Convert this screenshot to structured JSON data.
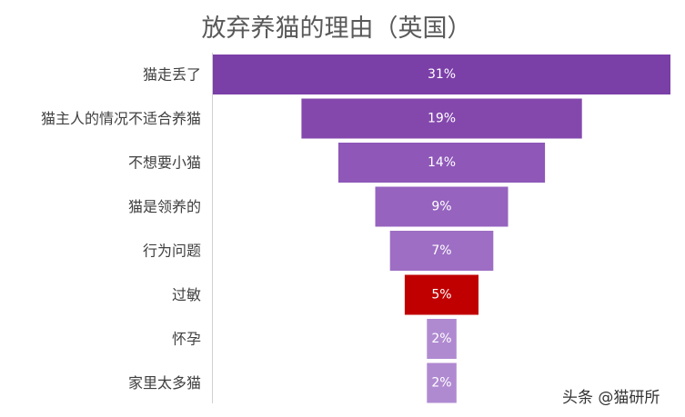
{
  "chart_data": {
    "type": "bar",
    "orientation": "horizontal",
    "layout": "funnel",
    "title": "放弃养猫的理由（英国）",
    "categories": [
      "猫走丢了",
      "猫主人的情况不适合养猫",
      "不想要小猫",
      "猫是领养的",
      "行为问题",
      "过敏",
      "怀孕",
      "家里太多猫"
    ],
    "values": [
      31,
      19,
      14,
      9,
      7,
      5,
      2,
      2
    ],
    "labels": [
      "31%",
      "19%",
      "14%",
      "9%",
      "7%",
      "5%",
      "2%",
      "2%"
    ],
    "bar_colors": [
      "#7b3fa8",
      "#8448ad",
      "#8e57b8",
      "#9663bf",
      "#9d6ec4",
      "#c00000",
      "#b08ad1",
      "#b08ad1"
    ],
    "grid": false,
    "legend": "none"
  },
  "watermark": "头条 @猫研所"
}
